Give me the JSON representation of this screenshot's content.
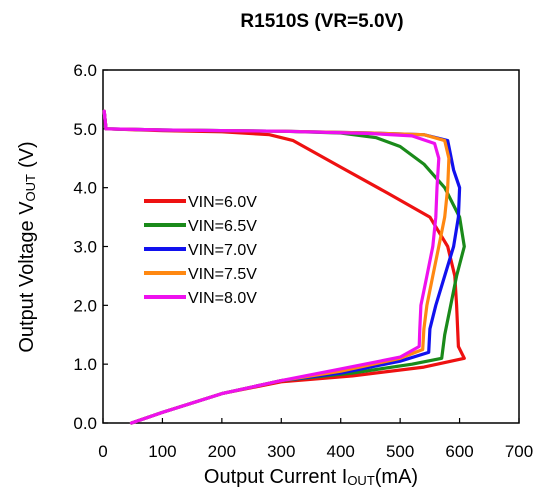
{
  "chart_data": {
    "type": "line",
    "title": "R1510S (VR=5.0V)",
    "xlabel": {
      "main": "Output Current I",
      "sub": "OUT",
      "unit": "(mA)"
    },
    "ylabel": {
      "main": "Output Voltage V",
      "sub": "OUT",
      "unit": "(V)"
    },
    "xlim": [
      0,
      700
    ],
    "ylim": [
      0,
      6
    ],
    "xticks": [
      "0",
      "100",
      "200",
      "300",
      "400",
      "500",
      "600",
      "700"
    ],
    "yticks": [
      "0.0",
      "1.0",
      "2.0",
      "3.0",
      "4.0",
      "5.0",
      "6.0"
    ],
    "grid": false,
    "legend_position": "left",
    "series": [
      {
        "name": "VIN=6.0V",
        "color": "#ee1111",
        "points": [
          [
            48,
            0
          ],
          [
            100,
            0.18
          ],
          [
            200,
            0.5
          ],
          [
            300,
            0.7
          ],
          [
            420,
            0.8
          ],
          [
            540,
            0.95
          ],
          [
            608,
            1.1
          ],
          [
            598,
            1.3
          ],
          [
            595,
            2.0
          ],
          [
            592,
            2.5
          ],
          [
            580,
            3.0
          ],
          [
            550,
            3.5
          ],
          [
            480,
            3.9
          ],
          [
            400,
            4.35
          ],
          [
            320,
            4.8
          ],
          [
            280,
            4.9
          ],
          [
            200,
            4.95
          ],
          [
            100,
            4.97
          ],
          [
            5,
            5.0
          ],
          [
            2,
            5.3
          ]
        ]
      },
      {
        "name": "VIN=6.5V",
        "color": "#1a8a1a",
        "points": [
          [
            48,
            0
          ],
          [
            100,
            0.18
          ],
          [
            200,
            0.5
          ],
          [
            300,
            0.72
          ],
          [
            420,
            0.85
          ],
          [
            520,
            1.0
          ],
          [
            570,
            1.1
          ],
          [
            575,
            1.5
          ],
          [
            585,
            2.0
          ],
          [
            595,
            2.5
          ],
          [
            608,
            3.0
          ],
          [
            600,
            3.5
          ],
          [
            575,
            4.0
          ],
          [
            540,
            4.4
          ],
          [
            500,
            4.7
          ],
          [
            460,
            4.85
          ],
          [
            400,
            4.93
          ],
          [
            300,
            4.96
          ],
          [
            100,
            4.98
          ],
          [
            5,
            5.0
          ],
          [
            2,
            5.3
          ]
        ]
      },
      {
        "name": "VIN=7.0V",
        "color": "#1111ee",
        "points": [
          [
            48,
            0
          ],
          [
            100,
            0.18
          ],
          [
            200,
            0.5
          ],
          [
            300,
            0.72
          ],
          [
            400,
            0.85
          ],
          [
            500,
            1.05
          ],
          [
            548,
            1.2
          ],
          [
            550,
            1.6
          ],
          [
            560,
            2.0
          ],
          [
            575,
            2.5
          ],
          [
            590,
            3.0
          ],
          [
            598,
            3.5
          ],
          [
            600,
            4.0
          ],
          [
            590,
            4.3
          ],
          [
            580,
            4.8
          ],
          [
            540,
            4.9
          ],
          [
            450,
            4.93
          ],
          [
            300,
            4.96
          ],
          [
            100,
            4.98
          ],
          [
            5,
            5.0
          ],
          [
            2,
            5.3
          ]
        ]
      },
      {
        "name": "VIN=7.5V",
        "color": "#ff8811",
        "points": [
          [
            48,
            0
          ],
          [
            100,
            0.18
          ],
          [
            200,
            0.5
          ],
          [
            300,
            0.72
          ],
          [
            400,
            0.88
          ],
          [
            500,
            1.1
          ],
          [
            538,
            1.25
          ],
          [
            540,
            1.6
          ],
          [
            545,
            2.0
          ],
          [
            555,
            2.5
          ],
          [
            565,
            3.0
          ],
          [
            575,
            3.5
          ],
          [
            580,
            4.0
          ],
          [
            582,
            4.5
          ],
          [
            575,
            4.8
          ],
          [
            540,
            4.9
          ],
          [
            450,
            4.93
          ],
          [
            300,
            4.96
          ],
          [
            100,
            4.98
          ],
          [
            5,
            5.0
          ],
          [
            2,
            5.3
          ]
        ]
      },
      {
        "name": "VIN=8.0V",
        "color": "#ee11ee",
        "points": [
          [
            48,
            0
          ],
          [
            100,
            0.18
          ],
          [
            200,
            0.5
          ],
          [
            300,
            0.72
          ],
          [
            400,
            0.92
          ],
          [
            500,
            1.12
          ],
          [
            532,
            1.3
          ],
          [
            533,
            1.6
          ],
          [
            535,
            2.0
          ],
          [
            545,
            2.5
          ],
          [
            555,
            3.0
          ],
          [
            560,
            3.5
          ],
          [
            562,
            4.0
          ],
          [
            565,
            4.5
          ],
          [
            558,
            4.75
          ],
          [
            520,
            4.88
          ],
          [
            450,
            4.92
          ],
          [
            300,
            4.96
          ],
          [
            100,
            4.98
          ],
          [
            5,
            5.0
          ],
          [
            2,
            5.3
          ]
        ]
      }
    ]
  }
}
